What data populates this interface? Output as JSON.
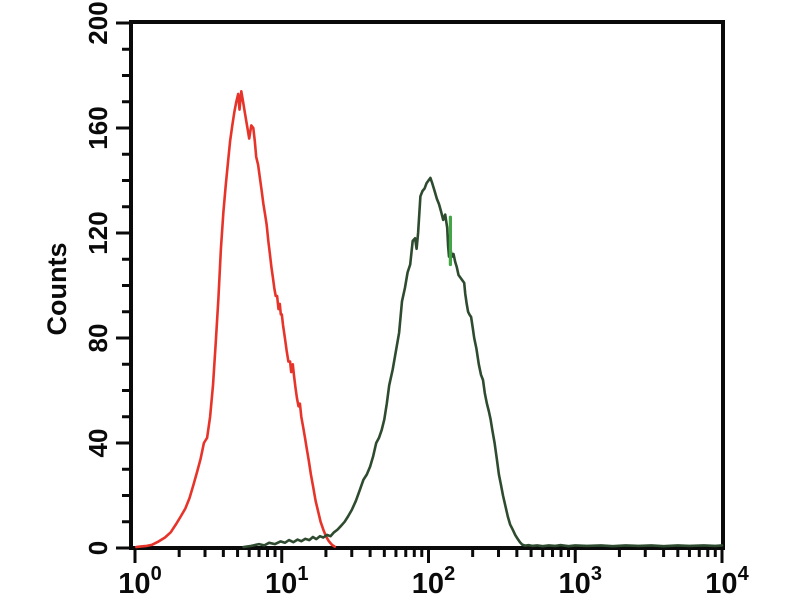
{
  "page": {
    "background_color": "#ffffff"
  },
  "chart_data": {
    "type": "line",
    "subtype": "flow-cytometry-histogram-overlay",
    "title": "",
    "xlabel": "",
    "ylabel": "Counts",
    "x_scale": "log10",
    "xlim": [
      1,
      10000
    ],
    "ylim": [
      0,
      200
    ],
    "grid": false,
    "legend_position": "none",
    "frame_color": "#0a0a0a",
    "tick_color": "#0a0a0a",
    "y_major_ticks": [
      0,
      40,
      80,
      120,
      160,
      200
    ],
    "y_major_tick_labels": [
      "0",
      "40",
      "80",
      "120",
      "160",
      "200"
    ],
    "y_minor_tick_step": 10,
    "x_major_tick_exponents": [
      0,
      1,
      2,
      3,
      4
    ],
    "x_major_tick_base": "10",
    "x_minor_tick_multipliers": [
      2,
      3,
      4,
      5,
      6,
      7,
      8,
      9
    ],
    "series": [
      {
        "name": "red-control-peak",
        "color": "#e7342a",
        "peak_x": 5.3,
        "peak_counts": 174,
        "points": [
          [
            1.02,
            0.4
          ],
          [
            1.1,
            0.6
          ],
          [
            1.2,
            0.8
          ],
          [
            1.3,
            1.2
          ],
          [
            1.45,
            2.5
          ],
          [
            1.6,
            4
          ],
          [
            1.75,
            6
          ],
          [
            1.9,
            9
          ],
          [
            2.05,
            12
          ],
          [
            2.2,
            15
          ],
          [
            2.35,
            19
          ],
          [
            2.5,
            24
          ],
          [
            2.65,
            29
          ],
          [
            2.8,
            34
          ],
          [
            2.95,
            40
          ],
          [
            3.1,
            42
          ],
          [
            3.25,
            50
          ],
          [
            3.4,
            62
          ],
          [
            3.55,
            78
          ],
          [
            3.7,
            95
          ],
          [
            3.85,
            114
          ],
          [
            4.0,
            128
          ],
          [
            4.15,
            138
          ],
          [
            4.3,
            147
          ],
          [
            4.45,
            155
          ],
          [
            4.6,
            161
          ],
          [
            4.75,
            166
          ],
          [
            4.9,
            170
          ],
          [
            5.05,
            173
          ],
          [
            5.15,
            167
          ],
          [
            5.3,
            174
          ],
          [
            5.45,
            170
          ],
          [
            5.6,
            166
          ],
          [
            5.8,
            161
          ],
          [
            6.0,
            156
          ],
          [
            6.2,
            161
          ],
          [
            6.4,
            160
          ],
          [
            6.55,
            155
          ],
          [
            6.7,
            149
          ],
          [
            6.9,
            146
          ],
          [
            7.1,
            141
          ],
          [
            7.3,
            136
          ],
          [
            7.5,
            131
          ],
          [
            7.7,
            127
          ],
          [
            7.9,
            123
          ],
          [
            8.1,
            117
          ],
          [
            8.3,
            112
          ],
          [
            8.5,
            107
          ],
          [
            8.7,
            103
          ],
          [
            8.9,
            99
          ],
          [
            9.1,
            96
          ],
          [
            9.3,
            96
          ],
          [
            9.5,
            91
          ],
          [
            9.7,
            93
          ],
          [
            9.85,
            89
          ],
          [
            10.0,
            89
          ],
          [
            10.2,
            85
          ],
          [
            10.5,
            80
          ],
          [
            10.8,
            75
          ],
          [
            11.1,
            71
          ],
          [
            11.4,
            71
          ],
          [
            11.6,
            67
          ],
          [
            11.9,
            70
          ],
          [
            12.1,
            66
          ],
          [
            12.4,
            61
          ],
          [
            12.7,
            57
          ],
          [
            13.0,
            54
          ],
          [
            13.3,
            55
          ],
          [
            13.6,
            50
          ],
          [
            14.0,
            46
          ],
          [
            14.4,
            42
          ],
          [
            14.8,
            38
          ],
          [
            15.3,
            33
          ],
          [
            15.8,
            28
          ],
          [
            16.4,
            23
          ],
          [
            17.0,
            18
          ],
          [
            17.7,
            14
          ],
          [
            18.4,
            10
          ],
          [
            19.2,
            7
          ],
          [
            20.0,
            4.5
          ],
          [
            21.0,
            2.5
          ],
          [
            22.0,
            1.2
          ],
          [
            23.0,
            0.5
          ]
        ]
      },
      {
        "name": "green-stained-peak",
        "color": "#2e4b30",
        "peak_x": 103,
        "peak_counts": 141,
        "points": [
          [
            5.5,
            0.4
          ],
          [
            6.2,
            0.8
          ],
          [
            7.0,
            1.5
          ],
          [
            7.6,
            1.0
          ],
          [
            8.2,
            2.0
          ],
          [
            9.0,
            1.5
          ],
          [
            9.8,
            2.5
          ],
          [
            10.5,
            2.0
          ],
          [
            11.2,
            3.0
          ],
          [
            12.0,
            2.2
          ],
          [
            12.8,
            3.2
          ],
          [
            13.6,
            2.6
          ],
          [
            14.5,
            3.5
          ],
          [
            15.4,
            3.0
          ],
          [
            16.3,
            4.2
          ],
          [
            17.2,
            3.4
          ],
          [
            18.2,
            4.5
          ],
          [
            19.2,
            4.0
          ],
          [
            20.3,
            5.0
          ],
          [
            21.5,
            4.5
          ],
          [
            22.7,
            6.0
          ],
          [
            24.0,
            7.0
          ],
          [
            25.4,
            8.5
          ],
          [
            26.8,
            10
          ],
          [
            28.3,
            12
          ],
          [
            30.0,
            14.5
          ],
          [
            32.0,
            18
          ],
          [
            34.0,
            22
          ],
          [
            36.0,
            26
          ],
          [
            38.0,
            28
          ],
          [
            40.0,
            31
          ],
          [
            42.0,
            35
          ],
          [
            44.0,
            40
          ],
          [
            46.0,
            42
          ],
          [
            48.0,
            45
          ],
          [
            50.0,
            49
          ],
          [
            52.0,
            55
          ],
          [
            54.0,
            62
          ],
          [
            57.0,
            68
          ],
          [
            60.0,
            75
          ],
          [
            63.0,
            82
          ],
          [
            66.0,
            94
          ],
          [
            69.0,
            99
          ],
          [
            72.0,
            105
          ],
          [
            75.0,
            108
          ],
          [
            78.0,
            117
          ],
          [
            81.0,
            118
          ],
          [
            83.0,
            114
          ],
          [
            85.0,
            120
          ],
          [
            88.0,
            134
          ],
          [
            91.0,
            136
          ],
          [
            94.0,
            137
          ],
          [
            97.0,
            139
          ],
          [
            100.0,
            140
          ],
          [
            103.0,
            141
          ],
          [
            106.0,
            139
          ],
          [
            110.0,
            136
          ],
          [
            114.0,
            133
          ],
          [
            118.0,
            131
          ],
          [
            122.0,
            128
          ],
          [
            126.0,
            125
          ],
          [
            130.0,
            127
          ],
          [
            134.0,
            122
          ],
          [
            136.0,
            115
          ],
          [
            138.0,
            111
          ],
          [
            140.0,
            119
          ],
          [
            142.0,
            113
          ],
          [
            145.0,
            111
          ],
          [
            148.0,
            112
          ],
          [
            152.0,
            109
          ],
          [
            156.0,
            107
          ],
          [
            160.0,
            104
          ],
          [
            165.0,
            103
          ],
          [
            170.0,
            102
          ],
          [
            175.0,
            101
          ],
          [
            178.0,
            97
          ],
          [
            182.0,
            93
          ],
          [
            186.0,
            90
          ],
          [
            190.0,
            89
          ],
          [
            195.0,
            88
          ],
          [
            200.0,
            84
          ],
          [
            205.0,
            80
          ],
          [
            212.0,
            76
          ],
          [
            220.0,
            70
          ],
          [
            228.0,
            66
          ],
          [
            235.0,
            64
          ],
          [
            242.0,
            59
          ],
          [
            250.0,
            55
          ],
          [
            258.0,
            52
          ],
          [
            265.0,
            49
          ],
          [
            272.0,
            45
          ],
          [
            282.0,
            40
          ],
          [
            292.0,
            34
          ],
          [
            302.0,
            28
          ],
          [
            312.0,
            24
          ],
          [
            322.0,
            20
          ],
          [
            334.0,
            16
          ],
          [
            347.0,
            12
          ],
          [
            360.0,
            9
          ],
          [
            375.0,
            7
          ],
          [
            390.0,
            5
          ],
          [
            405.0,
            3.5
          ],
          [
            420.0,
            2.2
          ],
          [
            435.0,
            1.3
          ],
          [
            455.0,
            0.9
          ],
          [
            480.0,
            1.1
          ],
          [
            510.0,
            0.8
          ],
          [
            550.0,
            1.0
          ],
          [
            600.0,
            0.7
          ],
          [
            660.0,
            1.0
          ],
          [
            730.0,
            0.8
          ],
          [
            800.0,
            1.1
          ],
          [
            900.0,
            0.7
          ],
          [
            1000.0,
            1.0
          ],
          [
            1200.0,
            0.8
          ],
          [
            1500.0,
            1.0
          ],
          [
            1800.0,
            0.7
          ],
          [
            2200.0,
            1.0
          ],
          [
            2700.0,
            0.8
          ],
          [
            3300.0,
            1.0
          ],
          [
            4000.0,
            0.7
          ],
          [
            5000.0,
            1.0
          ],
          [
            6000.0,
            0.8
          ],
          [
            7500.0,
            1.0
          ],
          [
            9000.0,
            0.8
          ],
          [
            10000.0,
            1.0
          ]
        ]
      }
    ],
    "annotations": [
      {
        "name": "bright-green-spike",
        "color": "#43a546",
        "x_value": 141,
        "counts_from": 108,
        "counts_to": 126
      }
    ]
  }
}
